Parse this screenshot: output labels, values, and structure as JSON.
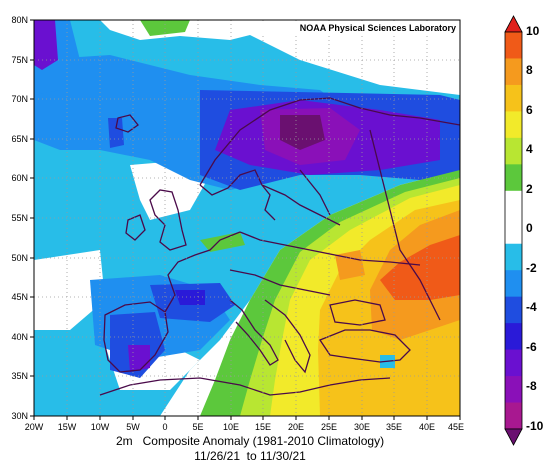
{
  "map": {
    "credit": "NOAA Physical Sciences Laboratory",
    "lat_labels": [
      "80N",
      "75N",
      "70N",
      "65N",
      "60N",
      "55N",
      "50N",
      "45N",
      "40N",
      "35N",
      "30N"
    ],
    "lon_labels": [
      "20W",
      "15W",
      "10W",
      "5W",
      "0",
      "5E",
      "10E",
      "15E",
      "20E",
      "25E",
      "30E",
      "35E",
      "40E",
      "45E"
    ],
    "title_line1": "2m   Composite Anomaly (1981-2010 Climatology)",
    "title_line2": "11/26/21  to 11/30/21"
  },
  "colorbar": {
    "labels": [
      "10",
      "8",
      "6",
      "4",
      "2",
      "0",
      "-2",
      "-4",
      "-6",
      "-8",
      "-10"
    ],
    "colors": [
      "#e0201c",
      "#f05a18",
      "#f59a1e",
      "#f6c21a",
      "#f2ea2a",
      "#b8e632",
      "#5cc83c",
      "#ffffff",
      "#ffffff",
      "#28bde8",
      "#1f8ff0",
      "#1f4de0",
      "#2a1ad8",
      "#6a10d0",
      "#8a10b8",
      "#a81890",
      "#6a1070"
    ]
  }
}
